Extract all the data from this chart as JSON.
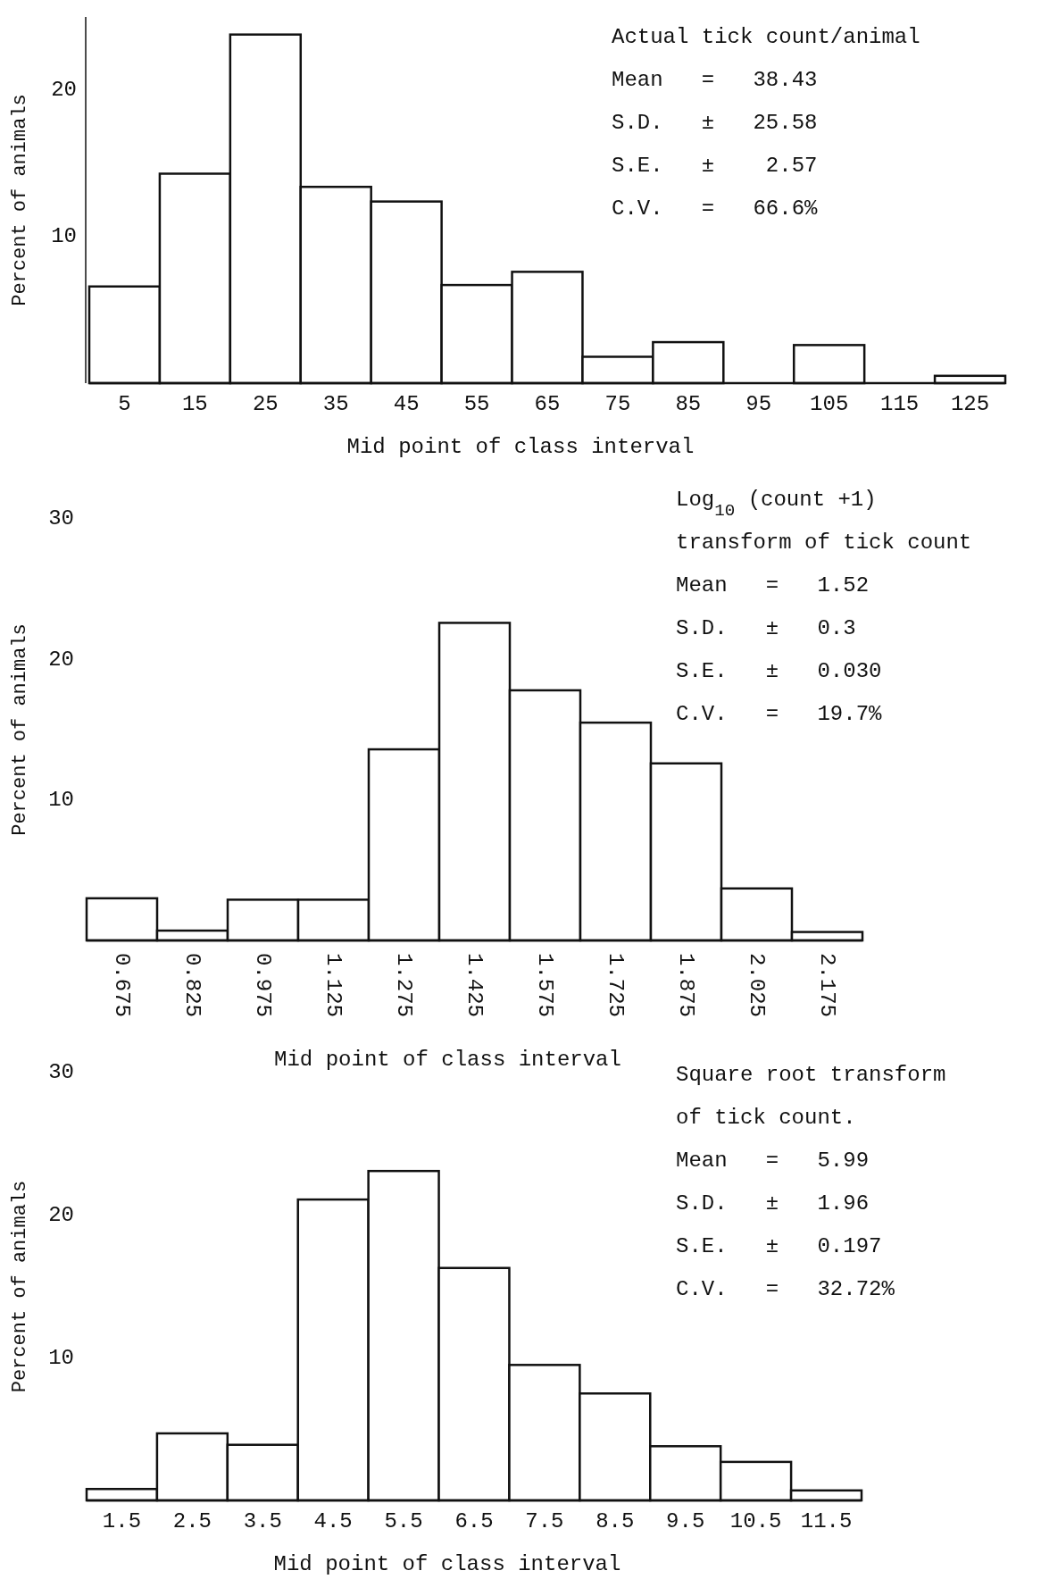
{
  "chart_data": [
    {
      "type": "histogram",
      "bins": [
        0,
        10,
        20,
        30,
        40,
        50,
        60,
        70,
        80,
        90,
        100,
        110,
        120,
        130
      ],
      "values": [
        6.6,
        14.3,
        23.8,
        13.4,
        12.4,
        6.7,
        7.6,
        1.8,
        2.8,
        0,
        2.6,
        0,
        0.5
      ],
      "color": "#ffffff",
      "xlabel": "Mid point of class interval",
      "ylabel": "Percent of animals",
      "xlim": [
        0,
        130
      ],
      "xticks": [
        5,
        15,
        25,
        35,
        45,
        55,
        65,
        75,
        85,
        95,
        105,
        115,
        125
      ],
      "ylim": [
        0,
        25
      ],
      "yticks": [
        10,
        20
      ],
      "grid": false,
      "annotations": [
        "Actual tick count/animal",
        "Mean   =   38.43",
        "S.D.   ±   25.58",
        "S.E.   ±    2.57",
        "C.V.   =   66.6%"
      ]
    },
    {
      "type": "histogram",
      "bins": [
        0.6,
        0.75,
        0.9,
        1.05,
        1.2,
        1.35,
        1.5,
        1.65,
        1.8,
        1.95,
        2.1,
        2.25
      ],
      "values": [
        3.0,
        0.7,
        2.9,
        2.9,
        13.6,
        22.6,
        17.8,
        15.5,
        12.6,
        3.7,
        0.6
      ],
      "color": "#ffffff",
      "xlabel": "Mid point of class interval",
      "ylabel": "Percent of animals",
      "xlim": [
        0.6,
        2.25
      ],
      "xticks": [
        0.675,
        0.825,
        0.975,
        1.125,
        1.275,
        1.425,
        1.575,
        1.725,
        1.875,
        2.025,
        2.175
      ],
      "ylim": [
        0,
        30
      ],
      "yticks": [
        10,
        20,
        30
      ],
      "grid": false,
      "annotations": [
        "Log$_{10}$ (count +1)",
        "transform of tick count",
        "Mean   =   1.52",
        "S.D.   ±   0.3",
        "S.E.   ±   0.030",
        "C.V.   =   19.7%"
      ]
    },
    {
      "type": "histogram",
      "bins": [
        1,
        2,
        3,
        4,
        5,
        6,
        7,
        8,
        9,
        10,
        11,
        12
      ],
      "values": [
        0.8,
        4.7,
        3.9,
        21.1,
        23.1,
        16.3,
        9.5,
        7.5,
        3.8,
        2.7,
        0.7
      ],
      "color": "#ffffff",
      "xlabel": "Mid point of class interval",
      "ylabel": "Percent of animals",
      "xlim": [
        1,
        12
      ],
      "xticks": [
        1.5,
        2.5,
        3.5,
        4.5,
        5.5,
        6.5,
        7.5,
        8.5,
        9.5,
        10.5,
        11.5
      ],
      "ylim": [
        0,
        30
      ],
      "yticks": [
        10,
        20,
        30
      ],
      "grid": false,
      "annotations": [
        "Square root transform",
        "of tick count.",
        "Mean   =   5.99",
        "S.D.   ±   1.96",
        "S.E.   ±   0.197",
        "C.V.   =   32.72%"
      ]
    }
  ]
}
